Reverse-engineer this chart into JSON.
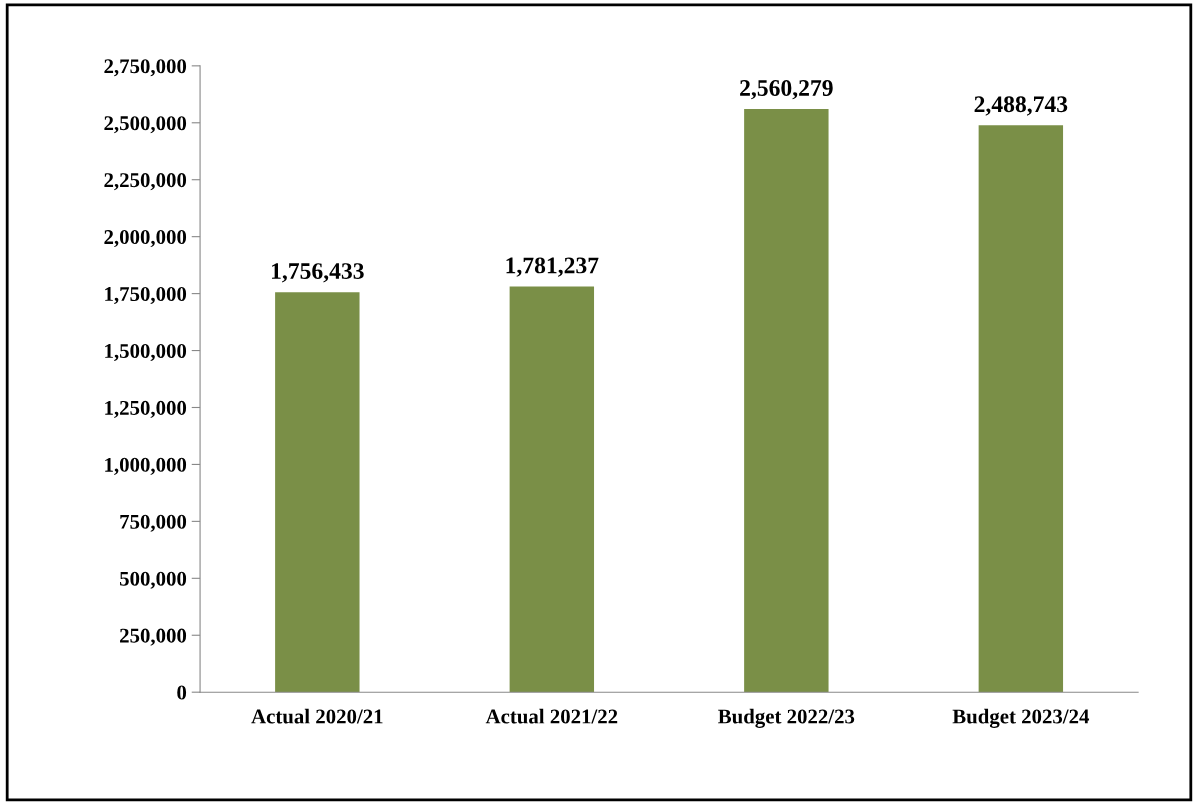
{
  "chart_data": {
    "type": "bar",
    "categories": [
      "Actual 2020/21",
      "Actual 2021/22",
      "Budget 2022/23",
      "Budget 2023/24"
    ],
    "values": [
      1756433,
      1781237,
      2560279,
      2488743
    ],
    "color": "#7a8f47",
    "ylim": [
      0,
      2750000
    ],
    "yticks": [
      {
        "value": 0,
        "label": "0"
      },
      {
        "value": 250000,
        "label": "250,000"
      },
      {
        "value": 500000,
        "label": "500,000"
      },
      {
        "value": 750000,
        "label": "750,000"
      },
      {
        "value": 1000000,
        "label": "1,000,000"
      },
      {
        "value": 1250000,
        "label": "1,250,000"
      },
      {
        "value": 1500000,
        "label": "1,500,000"
      },
      {
        "value": 1750000,
        "label": "1,750,000"
      },
      {
        "value": 2000000,
        "label": "2,000,000"
      },
      {
        "value": 2250000,
        "label": "2,250,000"
      },
      {
        "value": 2500000,
        "label": "2,500,000"
      },
      {
        "value": 2750000,
        "label": "2,750,000"
      }
    ],
    "value_labels": [
      "1,756,433",
      "1,781,237",
      "2,560,279",
      "2,488,743"
    ],
    "grid": false
  }
}
